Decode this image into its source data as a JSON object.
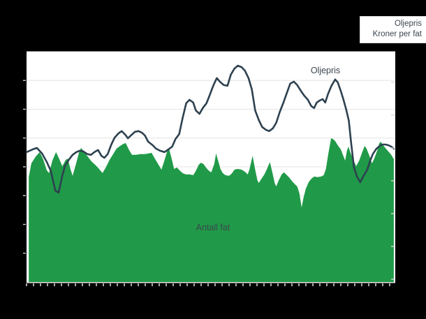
{
  "window": {
    "background": "#000000"
  },
  "legend": {
    "line1": "Oljepris",
    "line2": "Kroner per fat"
  },
  "annotations": {
    "line_label": "Oljepris",
    "area_label": "Antall fat"
  },
  "colors": {
    "plot_bg": "#ffffff",
    "grid": "#e4e4e4",
    "area": "#209a48",
    "line": "#2d4150",
    "tick": "#cfcfcf",
    "text": "#3c4650",
    "legend_text": "#3c4650"
  },
  "chart_data": {
    "type": "area",
    "title": "",
    "legend": {
      "position": "top-right",
      "lines": [
        "Oljepris",
        "Kroner per fat"
      ]
    },
    "x_axis": {
      "range": [
        0,
        100
      ],
      "tick_count": 53,
      "tick_labels_visible": false
    },
    "y_axis": {
      "range": [
        0,
        100
      ],
      "inner_gridlines": 7,
      "tick_labels_visible": false,
      "note": "No numeric axis labels shown; values are percent of plot height"
    },
    "series": [
      {
        "name": "Antall fat",
        "kind": "area",
        "color_key": "area",
        "points": [
          [
            0.6,
            45.5
          ],
          [
            1.3,
            51.5
          ],
          [
            2.5,
            54.5
          ],
          [
            3.6,
            56.4
          ],
          [
            4.5,
            53.3
          ],
          [
            5.5,
            48.5
          ],
          [
            6.1,
            47.3
          ],
          [
            7,
            52.7
          ],
          [
            8,
            56.4
          ],
          [
            8.9,
            53.3
          ],
          [
            9.7,
            50.3
          ],
          [
            10.6,
            53
          ],
          [
            11.2,
            53.6
          ],
          [
            11.9,
            49.1
          ],
          [
            12.5,
            46.1
          ],
          [
            13.5,
            51.8
          ],
          [
            14.2,
            56.1
          ],
          [
            14.8,
            58.2
          ],
          [
            15.7,
            56.4
          ],
          [
            16.7,
            54.2
          ],
          [
            17.6,
            52.4
          ],
          [
            18.6,
            50.9
          ],
          [
            19.5,
            49.4
          ],
          [
            20.6,
            47.3
          ],
          [
            21.6,
            50
          ],
          [
            22.5,
            53
          ],
          [
            23.5,
            55.5
          ],
          [
            24.4,
            57.9
          ],
          [
            25.4,
            59.1
          ],
          [
            26.3,
            60
          ],
          [
            26.9,
            60.3
          ],
          [
            27.8,
            57.3
          ],
          [
            28.6,
            55.2
          ],
          [
            29.7,
            55.2
          ],
          [
            30.9,
            55.5
          ],
          [
            32,
            55.5
          ],
          [
            33.1,
            55.8
          ],
          [
            33.9,
            56.1
          ],
          [
            34.8,
            53.6
          ],
          [
            35.8,
            50.9
          ],
          [
            36.6,
            48.8
          ],
          [
            37.5,
            53.3
          ],
          [
            38.3,
            57.6
          ],
          [
            38.6,
            58.2
          ],
          [
            39.4,
            53.3
          ],
          [
            40,
            49.1
          ],
          [
            40.8,
            49.7
          ],
          [
            41.5,
            48.5
          ],
          [
            42.3,
            47.3
          ],
          [
            43.2,
            46.7
          ],
          [
            44.2,
            46.7
          ],
          [
            45.2,
            46.4
          ],
          [
            45.9,
            48.2
          ],
          [
            46.7,
            50.9
          ],
          [
            47.3,
            51.8
          ],
          [
            48,
            51.2
          ],
          [
            48.8,
            49.4
          ],
          [
            49.5,
            48.2
          ],
          [
            50.1,
            47.6
          ],
          [
            50.9,
            51.2
          ],
          [
            51.4,
            55.8
          ],
          [
            52,
            52.4
          ],
          [
            52.6,
            49.1
          ],
          [
            53.2,
            47.3
          ],
          [
            53.9,
            46.4
          ],
          [
            54.9,
            46.1
          ],
          [
            55.6,
            47
          ],
          [
            56.4,
            48.8
          ],
          [
            57.3,
            49.1
          ],
          [
            58.3,
            48.8
          ],
          [
            59.2,
            47.9
          ],
          [
            60,
            46.7
          ],
          [
            60.5,
            49.1
          ],
          [
            61.3,
            54.8
          ],
          [
            62,
            48.8
          ],
          [
            62.6,
            44.2
          ],
          [
            63,
            43
          ],
          [
            63.7,
            44.8
          ],
          [
            64.5,
            46.7
          ],
          [
            65.2,
            49.1
          ],
          [
            66,
            52.1
          ],
          [
            66.7,
            47.3
          ],
          [
            67.3,
            43
          ],
          [
            67.7,
            41.5
          ],
          [
            68.5,
            44.5
          ],
          [
            69.2,
            46.7
          ],
          [
            69.8,
            47.6
          ],
          [
            70.6,
            46.4
          ],
          [
            71.3,
            45.2
          ],
          [
            72.1,
            43.6
          ],
          [
            72.8,
            42.4
          ],
          [
            73.4,
            41.5
          ],
          [
            74,
            38.5
          ],
          [
            74.6,
            32.4
          ],
          [
            75.1,
            36.4
          ],
          [
            75.7,
            40.3
          ],
          [
            76.5,
            43.3
          ],
          [
            77.2,
            44.8
          ],
          [
            78,
            45.8
          ],
          [
            78.9,
            45.5
          ],
          [
            79.9,
            45.8
          ],
          [
            80.6,
            46.4
          ],
          [
            81.2,
            49.1
          ],
          [
            81.8,
            55.2
          ],
          [
            82.6,
            62.4
          ],
          [
            83.1,
            62.1
          ],
          [
            83.7,
            61.2
          ],
          [
            84.4,
            59.4
          ],
          [
            85.2,
            57.6
          ],
          [
            85.8,
            55.2
          ],
          [
            86.4,
            52.7
          ],
          [
            86.9,
            57
          ],
          [
            87.3,
            58.8
          ],
          [
            88,
            55.5
          ],
          [
            88.8,
            52.4
          ],
          [
            89.4,
            50.3
          ],
          [
            90.2,
            52.7
          ],
          [
            90.9,
            55.8
          ],
          [
            91.7,
            59.1
          ],
          [
            92.2,
            57.9
          ],
          [
            93,
            54.8
          ],
          [
            93.7,
            51.5
          ],
          [
            94.3,
            53.6
          ],
          [
            95.1,
            57
          ],
          [
            95.6,
            60
          ],
          [
            96,
            60.9
          ],
          [
            96.6,
            59.7
          ],
          [
            97.3,
            58.2
          ],
          [
            98.1,
            56.7
          ],
          [
            98.9,
            55.2
          ],
          [
            99.6,
            53.3
          ]
        ]
      },
      {
        "name": "Oljepris",
        "kind": "line",
        "color_key": "line",
        "points": [
          [
            0,
            56.4
          ],
          [
            1.7,
            57.6
          ],
          [
            2.8,
            58.2
          ],
          [
            4.2,
            55.8
          ],
          [
            5.5,
            52.1
          ],
          [
            6.6,
            48.2
          ],
          [
            7.8,
            39.7
          ],
          [
            8.7,
            38.8
          ],
          [
            9.7,
            46.1
          ],
          [
            10.4,
            50.3
          ],
          [
            11.6,
            53.3
          ],
          [
            12.5,
            55.2
          ],
          [
            13.5,
            56.4
          ],
          [
            14.4,
            57
          ],
          [
            15.4,
            56.7
          ],
          [
            16.5,
            55.5
          ],
          [
            17.5,
            55.2
          ],
          [
            18.4,
            56.4
          ],
          [
            19.4,
            57.3
          ],
          [
            20.3,
            54.8
          ],
          [
            21.1,
            53.9
          ],
          [
            22,
            55.5
          ],
          [
            23,
            59.7
          ],
          [
            23.9,
            62.7
          ],
          [
            24.9,
            64.5
          ],
          [
            25.8,
            65.5
          ],
          [
            26.8,
            63.9
          ],
          [
            27.5,
            62.4
          ],
          [
            28.5,
            63.9
          ],
          [
            29.4,
            65.2
          ],
          [
            30.4,
            65.5
          ],
          [
            31.3,
            64.8
          ],
          [
            32.1,
            63.6
          ],
          [
            33,
            60.9
          ],
          [
            34.2,
            59.4
          ],
          [
            35.1,
            57.9
          ],
          [
            36.2,
            57
          ],
          [
            37.4,
            56.4
          ],
          [
            38.5,
            57.6
          ],
          [
            39.5,
            58.8
          ],
          [
            40.4,
            62.1
          ],
          [
            41.4,
            64.2
          ],
          [
            42.3,
            70.9
          ],
          [
            43.3,
            77.6
          ],
          [
            44.2,
            79.1
          ],
          [
            45.2,
            77.9
          ],
          [
            45.9,
            74.5
          ],
          [
            46.9,
            73
          ],
          [
            47.8,
            75.5
          ],
          [
            48.8,
            77.6
          ],
          [
            49.7,
            81.2
          ],
          [
            50.7,
            85.5
          ],
          [
            51.6,
            88.5
          ],
          [
            52.6,
            86.7
          ],
          [
            53.5,
            85.5
          ],
          [
            54.5,
            85.2
          ],
          [
            55.4,
            90
          ],
          [
            56.4,
            92.7
          ],
          [
            57.3,
            93.9
          ],
          [
            58.3,
            93.3
          ],
          [
            59.2,
            91.8
          ],
          [
            60.2,
            88.5
          ],
          [
            61.1,
            83.6
          ],
          [
            62,
            74.5
          ],
          [
            63,
            70.3
          ],
          [
            63.9,
            67.3
          ],
          [
            64.9,
            66.1
          ],
          [
            65.8,
            65.5
          ],
          [
            66.8,
            66.7
          ],
          [
            67.7,
            69.1
          ],
          [
            68.7,
            73.9
          ],
          [
            69.6,
            77.6
          ],
          [
            70.6,
            82.1
          ],
          [
            71.5,
            86.1
          ],
          [
            72.5,
            87
          ],
          [
            73.4,
            85.5
          ],
          [
            74.4,
            83
          ],
          [
            75.3,
            80.9
          ],
          [
            76.3,
            79.1
          ],
          [
            77.2,
            76.4
          ],
          [
            78,
            75.5
          ],
          [
            78.7,
            77.9
          ],
          [
            79.5,
            78.8
          ],
          [
            80.3,
            79.4
          ],
          [
            81,
            77.9
          ],
          [
            81.8,
            81.8
          ],
          [
            82.7,
            85.2
          ],
          [
            83.7,
            87.9
          ],
          [
            84.4,
            86.7
          ],
          [
            85.2,
            83
          ],
          [
            85.9,
            79.4
          ],
          [
            86.7,
            74.8
          ],
          [
            87.4,
            70
          ],
          [
            88,
            60.9
          ],
          [
            88.8,
            49.7
          ],
          [
            89.6,
            45.8
          ],
          [
            90.5,
            43.3
          ],
          [
            91.4,
            46.1
          ],
          [
            92.4,
            48.8
          ],
          [
            93.2,
            52.7
          ],
          [
            93.9,
            55.5
          ],
          [
            94.9,
            57.9
          ],
          [
            95.6,
            58.8
          ],
          [
            96.4,
            59.7
          ],
          [
            97.3,
            59.7
          ],
          [
            98.1,
            59.4
          ],
          [
            98.9,
            58.8
          ],
          [
            99.6,
            57.9
          ]
        ]
      }
    ]
  }
}
